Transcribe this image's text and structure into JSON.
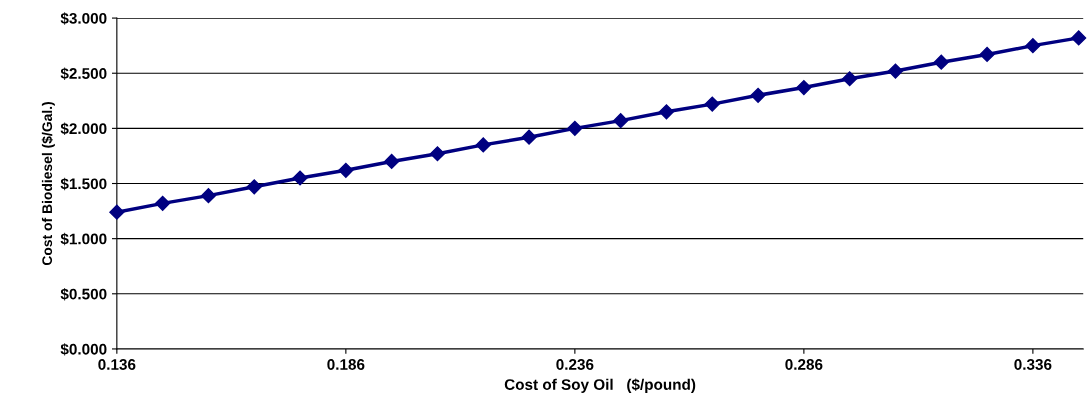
{
  "chart_data": {
    "type": "line",
    "xlabel": "Cost of Soy Oil   ($/pound)",
    "ylabel": "Cost of Biodiesel ($/Gal.)",
    "x": [
      0.136,
      0.146,
      0.156,
      0.166,
      0.176,
      0.186,
      0.196,
      0.206,
      0.216,
      0.226,
      0.236,
      0.246,
      0.256,
      0.266,
      0.276,
      0.286,
      0.296,
      0.306,
      0.316,
      0.326,
      0.336,
      0.346
    ],
    "series": [
      {
        "color": "#000080",
        "values": [
          1.24,
          1.32,
          1.39,
          1.47,
          1.55,
          1.62,
          1.7,
          1.77,
          1.85,
          1.92,
          2.0,
          2.07,
          2.15,
          2.22,
          2.3,
          2.37,
          2.45,
          2.52,
          2.6,
          2.67,
          2.75,
          2.82
        ]
      }
    ],
    "xlim": [
      0.136,
      0.347
    ],
    "xticks": [
      0.136,
      0.186,
      0.236,
      0.286,
      0.336
    ],
    "ylim": [
      0,
      3
    ],
    "yticks": [
      {
        "value": 0,
        "label": "$0.000"
      },
      {
        "value": 0.5,
        "label": "$0.500"
      },
      {
        "value": 1,
        "label": "$1.000"
      },
      {
        "value": 1.5,
        "label": "$1.500"
      },
      {
        "value": 2,
        "label": "$2.000"
      },
      {
        "value": 2.5,
        "label": "$2.500"
      },
      {
        "value": 3,
        "label": "$3.000"
      }
    ],
    "grid": "y",
    "marker": "diamond",
    "line_style": "solid",
    "legend": false
  }
}
